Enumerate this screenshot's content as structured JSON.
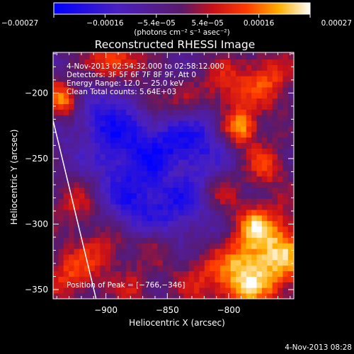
{
  "chart_data": {
    "type": "heatmap",
    "title": "Reconstructed RHESSI Image",
    "xlabel": "Heliocentric X (arcsec)",
    "ylabel": "Heliocentric Y (arcsec)",
    "xlim": [
      -943,
      -747
    ],
    "ylim": [
      -357,
      -169
    ],
    "x_ticks": [
      -900,
      -850,
      -800
    ],
    "y_ticks": [
      -350,
      -300,
      -250,
      -200
    ],
    "x_tick_labels": [
      "−900",
      "−850",
      "−800"
    ],
    "y_tick_labels": [
      "−350",
      "−300",
      "−250",
      "−200"
    ],
    "colorbar": {
      "colormap": "blue-purple-red-yellow-white",
      "range": [
        -0.00027,
        0.00027
      ],
      "tick_labels": [
        "−0.00027",
        "−0.00016",
        "−5.4e−05",
        "5.4e−05",
        "0.00016",
        "0.00027"
      ],
      "units": "(photons cm⁻² s⁻¹ asec⁻²)"
    },
    "annotations": [
      " 4-Nov-2013 02:54:32.000 to 02:58:12.000",
      "Detectors: 3F 5F 6F 7F 8F 9F, Att 0",
      "Energy Range: 12.0 − 25.0 keV",
      "Clean     Total counts: 5.64E+03"
    ],
    "peak_label": "Position of Peak = [−766,−346]",
    "peak": [
      -766,
      -346
    ],
    "limb_line": [
      [
        -943,
        -221
      ],
      [
        -908,
        -357
      ]
    ],
    "hot_spots": [
      {
        "x": -790,
        "y": -226,
        "r": 10,
        "v": 0.00025
      },
      {
        "x": -892,
        "y": -177,
        "r": 14,
        "v": 0.00022
      },
      {
        "x": -935,
        "y": -205,
        "r": 10,
        "v": 0.00023
      },
      {
        "x": -805,
        "y": -195,
        "r": 14,
        "v": 0.00014
      },
      {
        "x": -862,
        "y": -205,
        "r": 10,
        "v": 0.00013
      },
      {
        "x": -768,
        "y": -190,
        "r": 16,
        "v": 0.00016
      },
      {
        "x": -838,
        "y": -210,
        "r": 12,
        "v": 0.00011
      },
      {
        "x": -760,
        "y": -320,
        "r": 22,
        "v": 0.00024
      },
      {
        "x": -790,
        "y": -342,
        "r": 18,
        "v": 0.00022
      },
      {
        "x": -770,
        "y": -255,
        "r": 12,
        "v": 0.00014
      },
      {
        "x": -805,
        "y": -275,
        "r": 10,
        "v": 0.0001
      },
      {
        "x": -925,
        "y": -285,
        "r": 14,
        "v": 0.00012
      },
      {
        "x": -900,
        "y": -320,
        "r": 16,
        "v": 0.00012
      },
      {
        "x": -860,
        "y": -315,
        "r": 10,
        "v": 9e-05
      },
      {
        "x": -830,
        "y": -340,
        "r": 14,
        "v": 0.0001
      },
      {
        "x": -930,
        "y": -340,
        "r": 14,
        "v": 0.00015
      },
      {
        "x": -875,
        "y": -350,
        "r": 10,
        "v": 0.00011
      },
      {
        "x": -780,
        "y": -300,
        "r": 10,
        "v": 0.00013
      },
      {
        "x": -845,
        "y": -260,
        "r": 8,
        "v": 6e-05
      },
      {
        "x": -915,
        "y": -240,
        "r": 10,
        "v": 6e-05
      }
    ],
    "cold_spots": [
      {
        "x": -870,
        "y": -250,
        "r": 30,
        "v": -0.00015
      },
      {
        "x": -905,
        "y": -225,
        "r": 20,
        "v": -0.00012
      },
      {
        "x": -830,
        "y": -235,
        "r": 20,
        "v": -0.00013
      },
      {
        "x": -840,
        "y": -290,
        "r": 18,
        "v": -0.0001
      },
      {
        "x": -880,
        "y": -290,
        "r": 16,
        "v": -9e-05
      },
      {
        "x": -890,
        "y": -195,
        "r": 10,
        "v": -8e-05
      }
    ]
  },
  "timestamp": "4-Nov-2013 08:28"
}
